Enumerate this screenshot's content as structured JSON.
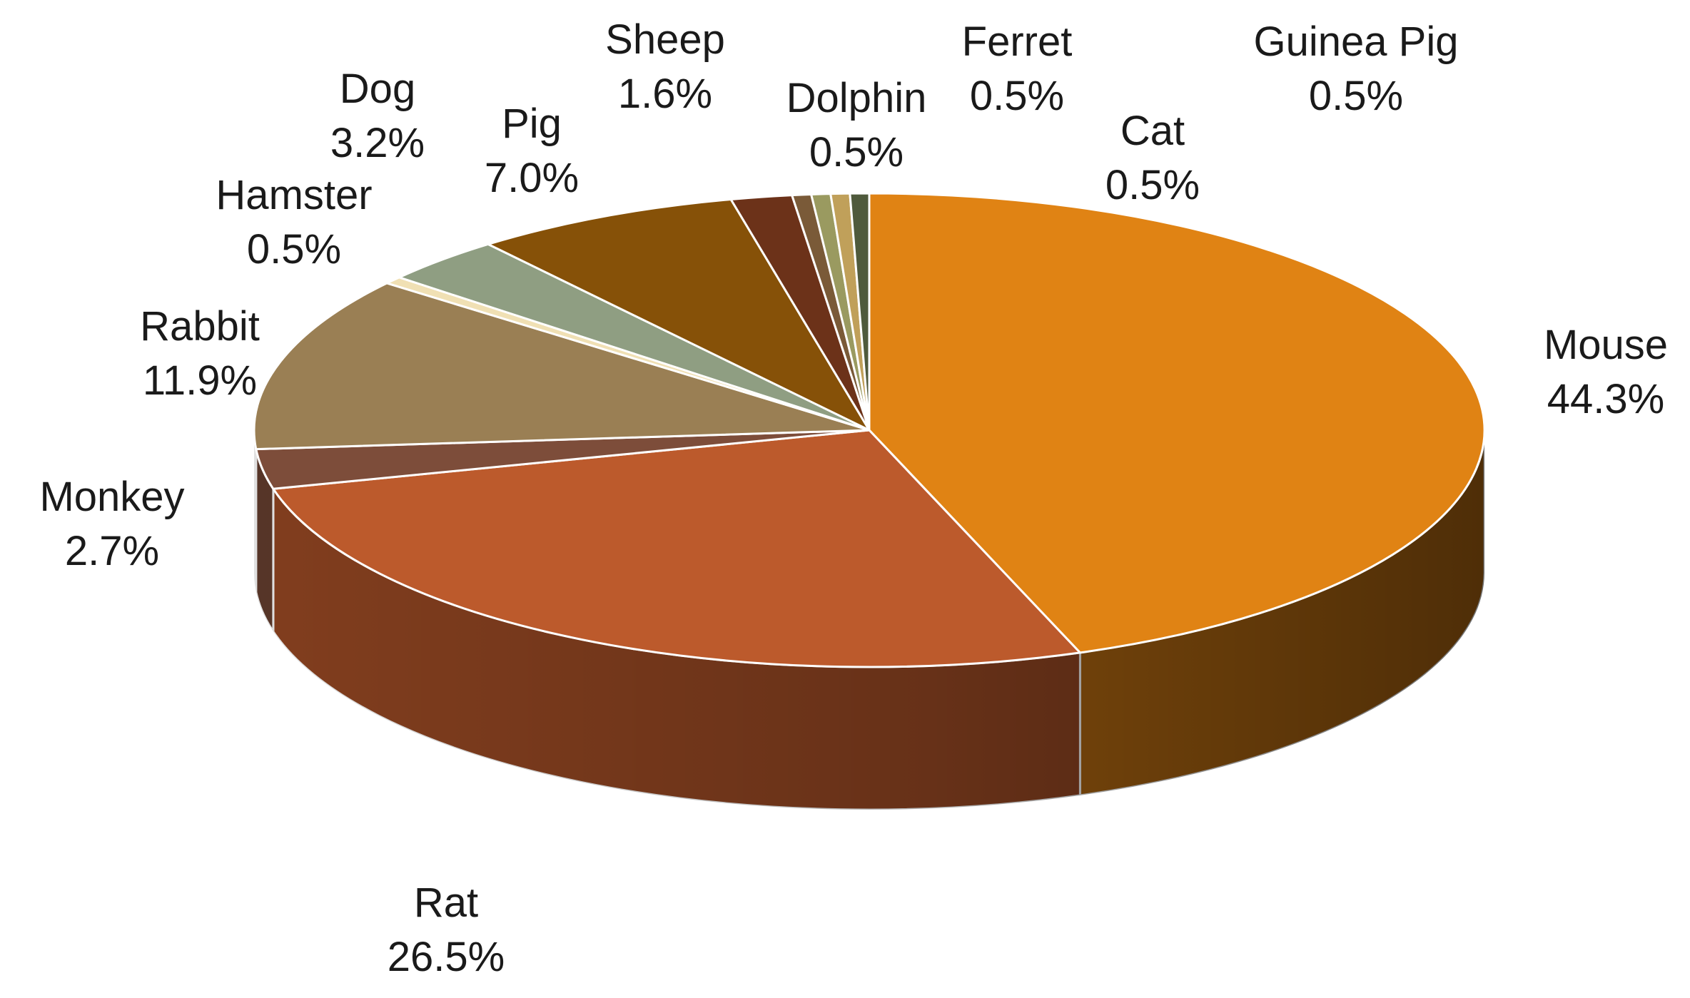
{
  "chart_data": {
    "type": "pie",
    "title": "",
    "style": "3d",
    "legend": "none",
    "categories": [
      "Mouse",
      "Rat",
      "Monkey",
      "Rabbit",
      "Hamster",
      "Dog",
      "Pig",
      "Sheep",
      "Dolphin",
      "Ferret",
      "Guinea Pig",
      "Cat"
    ],
    "values": [
      44.3,
      26.5,
      2.7,
      11.9,
      0.5,
      3.2,
      7.0,
      1.6,
      0.5,
      0.5,
      0.5,
      0.5
    ],
    "value_labels": [
      "44.3%",
      "26.5%",
      "2.7%",
      "11.9%",
      "0.5%",
      "3.2%",
      "7.0%",
      "1.6%",
      "0.5%",
      "0.5%",
      "0.5%",
      "0.5%"
    ],
    "colors": [
      "#e08314",
      "#bc5a2c",
      "#7d4d3a",
      "#9a7f54",
      "#f0e0b4",
      "#8f9e82",
      "#865108",
      "#6c3219",
      "#7a5a38",
      "#9a9a60",
      "#c0a05a",
      "#4f5a3c"
    ]
  }
}
